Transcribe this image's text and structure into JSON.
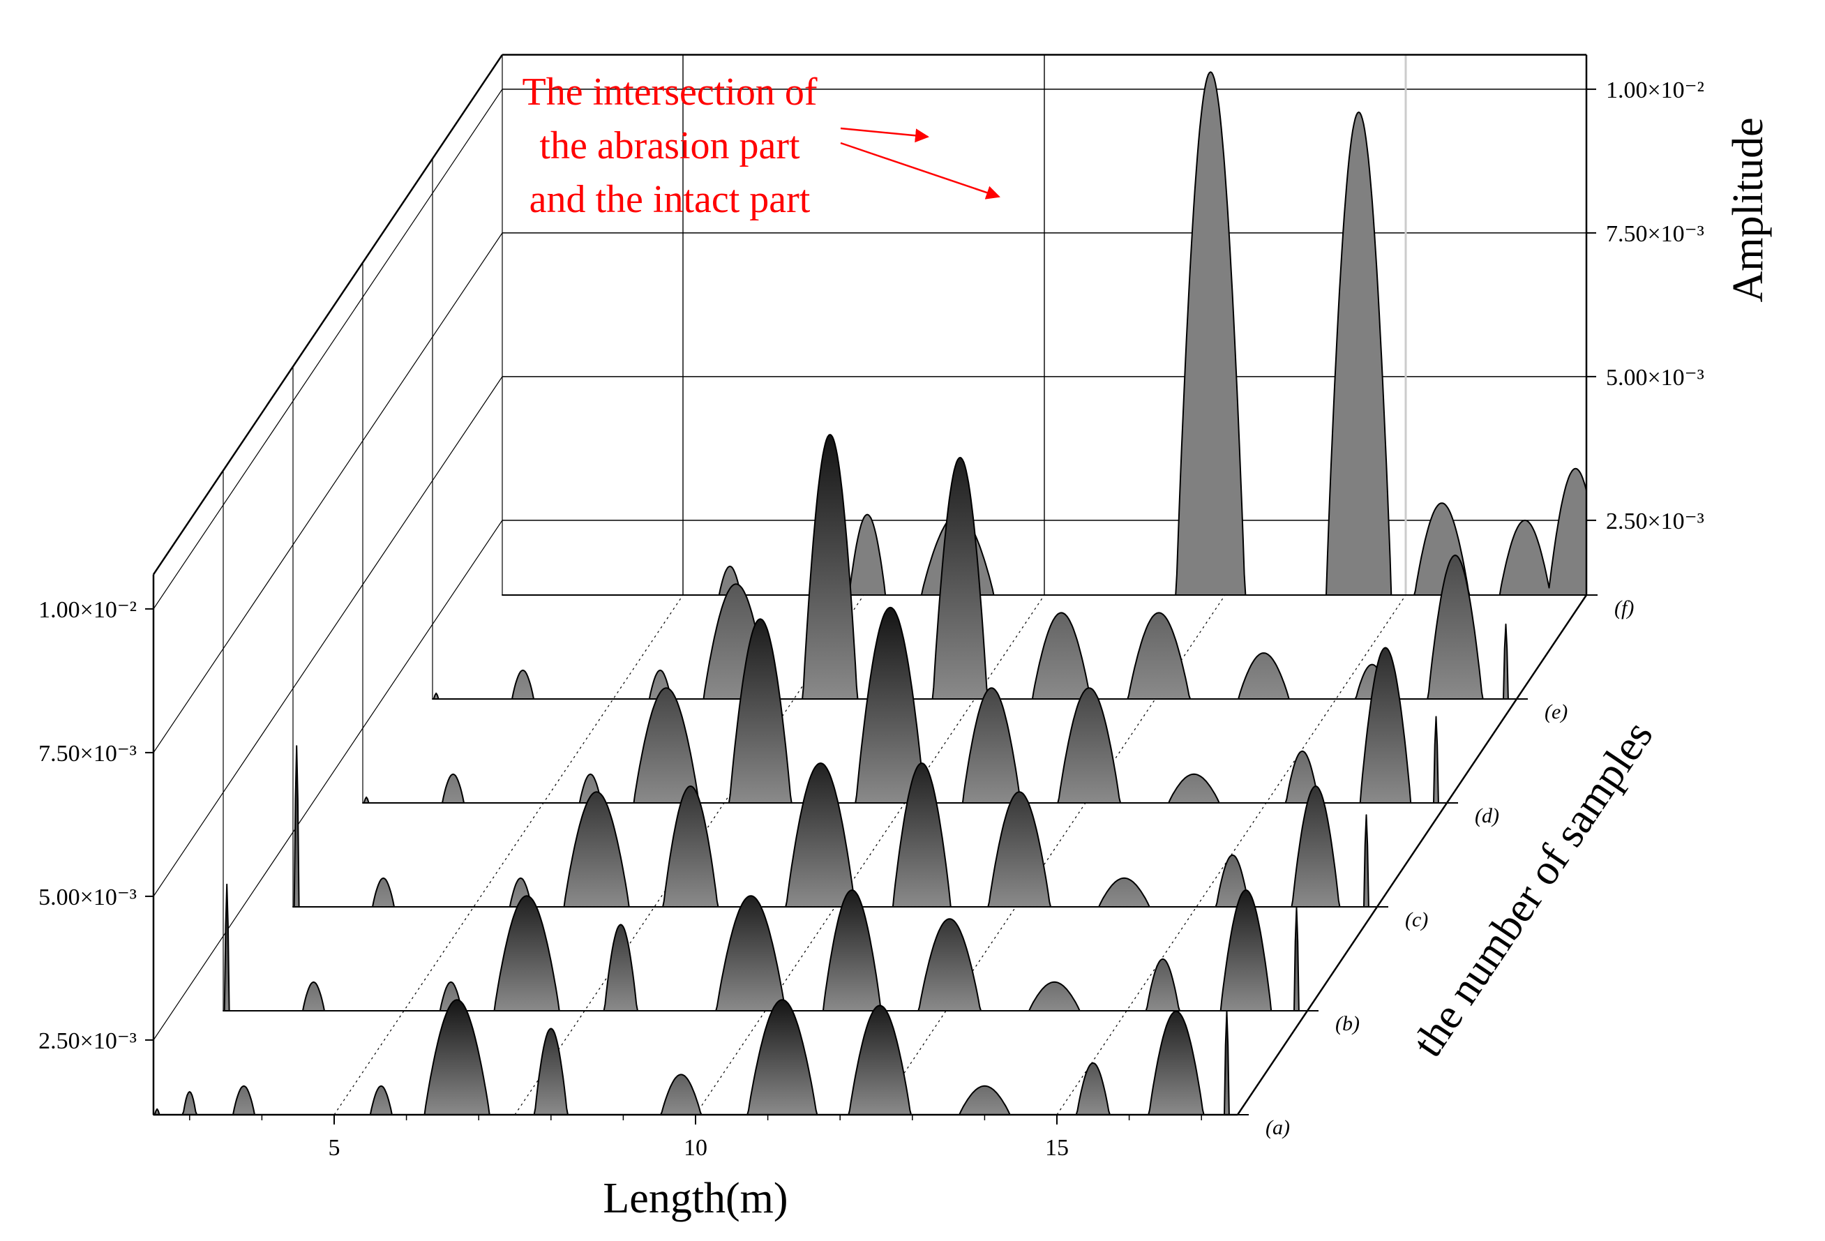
{
  "chart_data": {
    "type": "area",
    "subtype": "3d-waterfall",
    "xlabel": "Length(m)",
    "ylabel": "Amplitude",
    "zlabel": "the number of samples",
    "xlim": [
      2.5,
      17.5
    ],
    "ylim": [
      0.0012,
      0.0106
    ],
    "x_ticks": [
      5,
      10,
      15
    ],
    "x_tick_labels": [
      "5",
      "10",
      "15"
    ],
    "y_ticks": [
      0.0025,
      0.005,
      0.0075,
      0.01
    ],
    "y_tick_labels_right": [
      "2.50×10⁻³",
      "5.00×10⁻³",
      "7.50×10⁻³",
      "1.00×10⁻²"
    ],
    "y_tick_labels_left": [
      "2.50×10⁻³",
      "5.00×10⁻³",
      "7.50×10⁻³",
      "1.00×10⁻²"
    ],
    "grid": true,
    "colors": {
      "fill_dark": "#141414",
      "fill_light": "#8a8a8a",
      "back_fill": "#808080",
      "outline": "#000000",
      "annotation": "#ff0000",
      "grid": "#000000"
    },
    "annotation": {
      "lines": [
        "The intersection of",
        "the abrasion part",
        "and the intact part"
      ],
      "targets": [
        {
          "series": "(f)",
          "x": 13.4
        },
        {
          "series": "(f)",
          "x": 14.35
        }
      ]
    },
    "series": [
      {
        "name": "(a)",
        "peaks": [
          [
            2.55,
            0.0013,
            0.06
          ],
          [
            3.0,
            0.0016,
            0.18
          ],
          [
            3.75,
            0.0017,
            0.3
          ],
          [
            5.65,
            0.0017,
            0.3
          ],
          [
            6.7,
            0.0032,
            0.9
          ],
          [
            8.0,
            0.0027,
            0.45
          ],
          [
            9.8,
            0.0019,
            0.55
          ],
          [
            11.2,
            0.0032,
            0.95
          ],
          [
            12.55,
            0.0031,
            0.85
          ],
          [
            14.0,
            0.0017,
            0.7
          ],
          [
            15.5,
            0.0021,
            0.45
          ],
          [
            16.65,
            0.003,
            0.75
          ],
          [
            17.35,
            0.003,
            0.06
          ]
        ]
      },
      {
        "name": "(b)",
        "peaks": [
          [
            2.55,
            0.0034,
            0.06
          ],
          [
            3.75,
            0.0017,
            0.3
          ],
          [
            5.65,
            0.0017,
            0.3
          ],
          [
            6.7,
            0.0032,
            0.9
          ],
          [
            8.0,
            0.0027,
            0.45
          ],
          [
            9.8,
            0.0032,
            0.95
          ],
          [
            11.2,
            0.0033,
            0.8
          ],
          [
            12.55,
            0.0028,
            0.85
          ],
          [
            14.0,
            0.0017,
            0.7
          ],
          [
            15.5,
            0.0021,
            0.45
          ],
          [
            16.65,
            0.0033,
            0.7
          ],
          [
            17.35,
            0.003,
            0.06
          ]
        ]
      },
      {
        "name": "(c)",
        "peaks": [
          [
            2.55,
            0.004,
            0.06
          ],
          [
            3.75,
            0.0017,
            0.3
          ],
          [
            5.65,
            0.0017,
            0.3
          ],
          [
            6.7,
            0.0032,
            0.9
          ],
          [
            8.0,
            0.0033,
            0.75
          ],
          [
            9.8,
            0.0037,
            0.95
          ],
          [
            11.2,
            0.0037,
            0.8
          ],
          [
            12.55,
            0.0032,
            0.85
          ],
          [
            14.0,
            0.0017,
            0.7
          ],
          [
            15.5,
            0.0021,
            0.45
          ],
          [
            16.65,
            0.0033,
            0.65
          ],
          [
            17.35,
            0.0028,
            0.06
          ]
        ]
      },
      {
        "name": "(d)",
        "peaks": [
          [
            2.55,
            0.0013,
            0.06
          ],
          [
            3.75,
            0.0017,
            0.3
          ],
          [
            5.65,
            0.0017,
            0.3
          ],
          [
            6.7,
            0.0032,
            0.9
          ],
          [
            8.0,
            0.0044,
            0.85
          ],
          [
            9.8,
            0.0046,
            0.95
          ],
          [
            11.2,
            0.0032,
            0.8
          ],
          [
            12.55,
            0.0032,
            0.85
          ],
          [
            14.0,
            0.0017,
            0.7
          ],
          [
            15.5,
            0.0021,
            0.45
          ],
          [
            16.65,
            0.0039,
            0.7
          ],
          [
            17.35,
            0.0027,
            0.06
          ]
        ]
      },
      {
        "name": "(e)",
        "peaks": [
          [
            2.55,
            0.0013,
            0.06
          ],
          [
            3.75,
            0.0017,
            0.3
          ],
          [
            5.65,
            0.0017,
            0.3
          ],
          [
            6.7,
            0.0032,
            0.9
          ],
          [
            8.0,
            0.0058,
            0.75
          ],
          [
            9.8,
            0.0054,
            0.75
          ],
          [
            11.2,
            0.0027,
            0.8
          ],
          [
            12.55,
            0.0027,
            0.85
          ],
          [
            14.0,
            0.002,
            0.7
          ],
          [
            15.5,
            0.0018,
            0.45
          ],
          [
            16.65,
            0.0037,
            0.75
          ],
          [
            17.35,
            0.0025,
            0.06
          ]
        ]
      },
      {
        "name": "(f)",
        "peaks": [
          [
            5.65,
            0.0017,
            0.3
          ],
          [
            7.55,
            0.0026,
            0.5
          ],
          [
            8.8,
            0.0026,
            1.0
          ],
          [
            12.3,
            0.0103,
            0.95
          ],
          [
            14.35,
            0.0096,
            0.9
          ],
          [
            15.5,
            0.0028,
            0.75
          ],
          [
            16.65,
            0.0025,
            0.7
          ],
          [
            17.35,
            0.0034,
            0.75
          ]
        ]
      }
    ]
  }
}
